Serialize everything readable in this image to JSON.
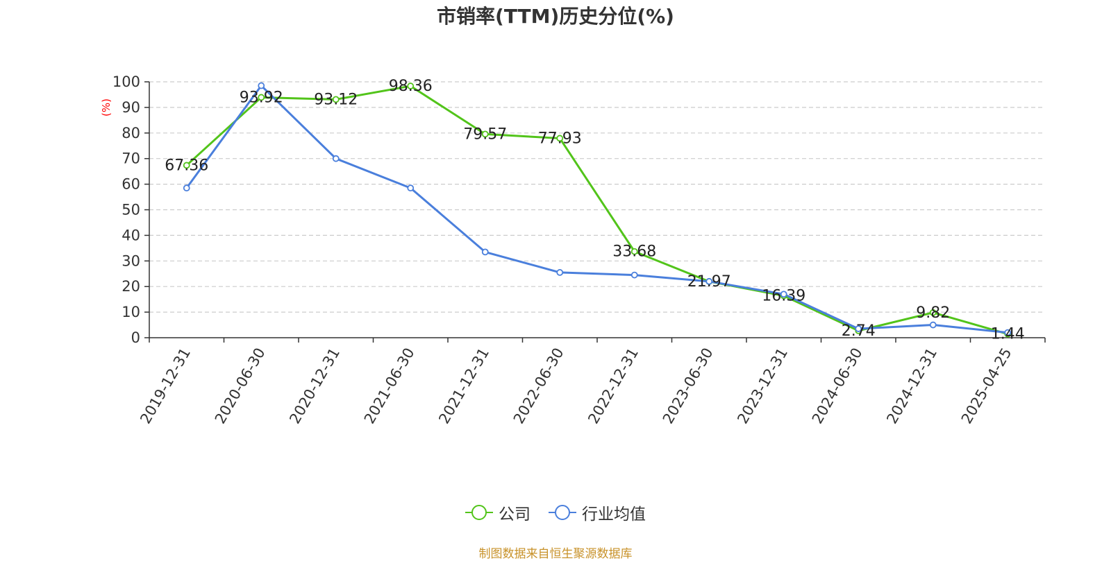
{
  "chart_data": {
    "type": "line",
    "title": "市销率(TTM)历史分位(%)",
    "ylabel": "(%)",
    "ylim": [
      0,
      100
    ],
    "yticks": [
      0,
      10,
      20,
      30,
      40,
      50,
      60,
      70,
      80,
      90,
      100
    ],
    "categories": [
      "2019-12-31",
      "2020-06-30",
      "2020-12-31",
      "2021-06-30",
      "2021-12-31",
      "2022-06-30",
      "2022-12-31",
      "2023-06-30",
      "2023-12-31",
      "2024-06-30",
      "2024-12-31",
      "2025-04-25"
    ],
    "series": [
      {
        "name": "公司",
        "color": "#52c41a",
        "values": [
          67.36,
          93.92,
          93.12,
          98.36,
          79.57,
          77.93,
          33.68,
          21.97,
          16.39,
          2.74,
          9.82,
          1.44
        ],
        "labels": [
          "67.36",
          "93.92",
          "93.12",
          "98.36",
          "79.57",
          "77.93",
          "33.68",
          "21.97",
          "16.39",
          "2.74",
          "9.82",
          "1.44"
        ]
      },
      {
        "name": "行业均值",
        "color": "#4a7fdc",
        "values": [
          58.5,
          98.5,
          70.0,
          58.5,
          33.5,
          25.5,
          24.5,
          22.0,
          17.0,
          3.5,
          5.0,
          2.0
        ]
      }
    ],
    "grid": true,
    "legend_position": "bottom-center"
  },
  "source_note": "制图数据来自恒生聚源数据库"
}
